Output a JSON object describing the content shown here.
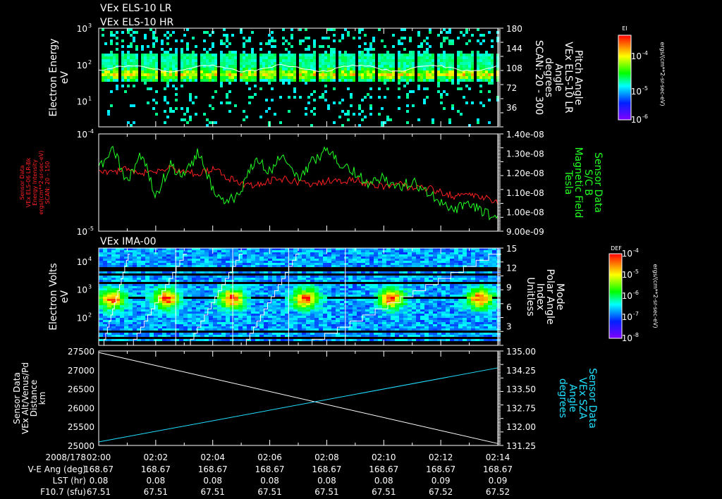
{
  "titles": {
    "top1": "VEx ELS-10 LR",
    "top2": "VEx ELS-10 HR",
    "ima": "VEx IMA-00"
  },
  "colors": {
    "background": "#000000",
    "axis": "#ffffff",
    "red_series": "#ff2020",
    "green_series": "#20ff20",
    "cyan_series": "#20e0ff"
  },
  "chart_data": [
    {
      "type": "heatmap",
      "name": "ELS electron energy spectrogram",
      "ylabel": [
        "Electron Energy",
        "eV"
      ],
      "yscale": "log",
      "ylim": [
        2,
        1000
      ],
      "yticks": [
        {
          "b": "10",
          "e": "3"
        },
        {
          "b": "10",
          "e": "2"
        },
        {
          "b": "10",
          "e": "1"
        }
      ],
      "right_axis": {
        "label": [
          "Pitch Angle",
          "VEx ELS-10 LR",
          "Angle",
          "degrees",
          "SCAN: 20 - 300"
        ],
        "ylim": [
          0,
          180
        ],
        "ticks": [
          "180",
          "144",
          "108",
          "72",
          "36"
        ]
      },
      "colorbar": {
        "title": "EI",
        "ticks": [
          {
            "b": "10",
            "e": "-4"
          },
          {
            "b": "10",
            "e": "-5"
          },
          {
            "b": "10",
            "e": "-6"
          }
        ],
        "units": "ergs/(cm**2-sr-sec-eV)"
      },
      "band_peak_energy_eV": 60
    },
    {
      "type": "line",
      "name": "Electron intensity and magnetic field",
      "ylabel": [
        "Sensor Data",
        "VEx ELS-06 LR-Bk",
        "Energy Intensity",
        "ergs/(cm**2-sr-sec-eV)",
        "SCAN: 20 - 150"
      ],
      "yscale": "log",
      "ylim": [
        1e-05,
        0.0001
      ],
      "yticks": [
        {
          "b": "10",
          "e": "-4"
        },
        {
          "b": "10",
          "e": "-5"
        }
      ],
      "right_axis": {
        "label": [
          "Sensor Data",
          "S/C B",
          "Magnetic Field",
          "Tesla"
        ],
        "ylim": [
          9e-09,
          1.4e-08
        ],
        "ticks": [
          "1.40e-08",
          "1.30e-08",
          "1.20e-08",
          "1.10e-08",
          "1.00e-08",
          "9.00e-09"
        ]
      },
      "x_minutes": [
        0,
        0.5,
        1,
        1.5,
        2,
        2.5,
        3,
        3.5,
        4,
        4.5,
        5,
        5.5,
        6,
        6.5,
        7,
        7.5,
        8,
        8.5,
        9,
        9.5,
        10,
        10.5,
        11,
        11.5,
        12,
        12.5,
        13,
        13.5,
        14
      ],
      "series": [
        {
          "name": "Energy Intensity",
          "color": "red",
          "values": [
            4.4e-05,
            4e-05,
            4.3e-05,
            3.9e-05,
            4.1e-05,
            4.5e-05,
            4.2e-05,
            3.8e-05,
            4.4e-05,
            3.6e-05,
            3.1e-05,
            3e-05,
            3.3e-05,
            3.4e-05,
            3.2e-05,
            2.9e-05,
            3.3e-05,
            3.2e-05,
            3.4e-05,
            3e-05,
            2.9e-05,
            3.2e-05,
            2.7e-05,
            2.8e-05,
            2.5e-05,
            2.3e-05,
            2.4e-05,
            2.2e-05,
            2e-05
          ]
        },
        {
          "name": "S/C B",
          "color": "green",
          "values": [
            1.22e-08,
            1.33e-08,
            1.15e-08,
            1.3e-08,
            1.08e-08,
            1.24e-08,
            1.18e-08,
            1.31e-08,
            1.12e-08,
            1.05e-08,
            1.1e-08,
            1.28e-08,
            1.21e-08,
            1.3e-08,
            1.17e-08,
            1.26e-08,
            1.32e-08,
            1.25e-08,
            1.2e-08,
            1.14e-08,
            1.18e-08,
            1.12e-08,
            1.16e-08,
            1.1e-08,
            1.05e-08,
            1.02e-08,
            1.04e-08,
            1e-08,
            9.7e-09
          ]
        }
      ]
    },
    {
      "type": "heatmap",
      "name": "IMA electron volts spectrogram",
      "ylabel": [
        "Electron Volts",
        "eV"
      ],
      "yscale": "log",
      "ylim": [
        10,
        30000
      ],
      "yticks": [
        {
          "b": "10",
          "e": "4"
        },
        {
          "b": "10",
          "e": "3"
        },
        {
          "b": "10",
          "e": "2"
        }
      ],
      "right_axis": {
        "label": [
          "Mode",
          "Polar Angle",
          "Index",
          "Unitless"
        ],
        "ylim": [
          0,
          15
        ],
        "ticks": [
          "15",
          "12",
          "9",
          "6",
          "3"
        ]
      },
      "colorbar": {
        "title": "DEF",
        "ticks": [
          {
            "b": "10",
            "e": "-4"
          },
          {
            "b": "10",
            "e": "-5"
          },
          {
            "b": "10",
            "e": "-6"
          },
          {
            "b": "10",
            "e": "-7"
          },
          {
            "b": "10",
            "e": "-8"
          }
        ],
        "units": "ergs/(cm**2-sr-sec-eV)"
      },
      "scan_boundaries_minutes": [
        0.97,
        2.97,
        4.93,
        6.92
      ],
      "hot_spots_minutes": [
        0.4,
        2.3,
        4.6,
        7.2,
        10.2,
        13.3
      ]
    },
    {
      "type": "line",
      "name": "Altitude and SZA",
      "ylabel": [
        "Sensor Data",
        "VEx Alt/Venus/Pd",
        "Distance",
        "km"
      ],
      "ylim": [
        25000,
        27500
      ],
      "yticks": [
        "27500",
        "27000",
        "26500",
        "26000",
        "25500",
        "25000"
      ],
      "right_axis": {
        "label": [
          "Sensor Data",
          "VEx SZA",
          "Angle",
          "degrees"
        ],
        "ylim": [
          131.25,
          135.0
        ],
        "ticks": [
          "135.00",
          "134.25",
          "133.50",
          "132.75",
          "132.00",
          "131.25"
        ]
      },
      "series": [
        {
          "name": "Distance",
          "color": "white",
          "x_minutes": [
            0,
            14
          ],
          "values": [
            27460,
            25050
          ]
        },
        {
          "name": "SZA",
          "color": "cyan",
          "x_minutes": [
            0,
            14
          ],
          "values": [
            131.39,
            134.33
          ]
        }
      ]
    }
  ],
  "x_axis": {
    "date": "2008/178",
    "ticks": [
      "02:00",
      "02:02",
      "02:04",
      "02:06",
      "02:08",
      "02:10",
      "02:12",
      "02:14"
    ],
    "rows": [
      {
        "label": "V-E Ang (deg)",
        "values": [
          "168.67",
          "168.67",
          "168.67",
          "168.67",
          "168.67",
          "168.67",
          "168.67",
          "168.67"
        ]
      },
      {
        "label": "LST (hr)",
        "values": [
          "0.08",
          "0.08",
          "0.08",
          "0.08",
          "0.08",
          "0.08",
          "0.09",
          "0.09"
        ]
      },
      {
        "label": "F10.7 (sfu)",
        "values": [
          "67.51",
          "67.51",
          "67.51",
          "67.51",
          "67.51",
          "67.51",
          "67.52",
          "67.52"
        ]
      }
    ]
  }
}
